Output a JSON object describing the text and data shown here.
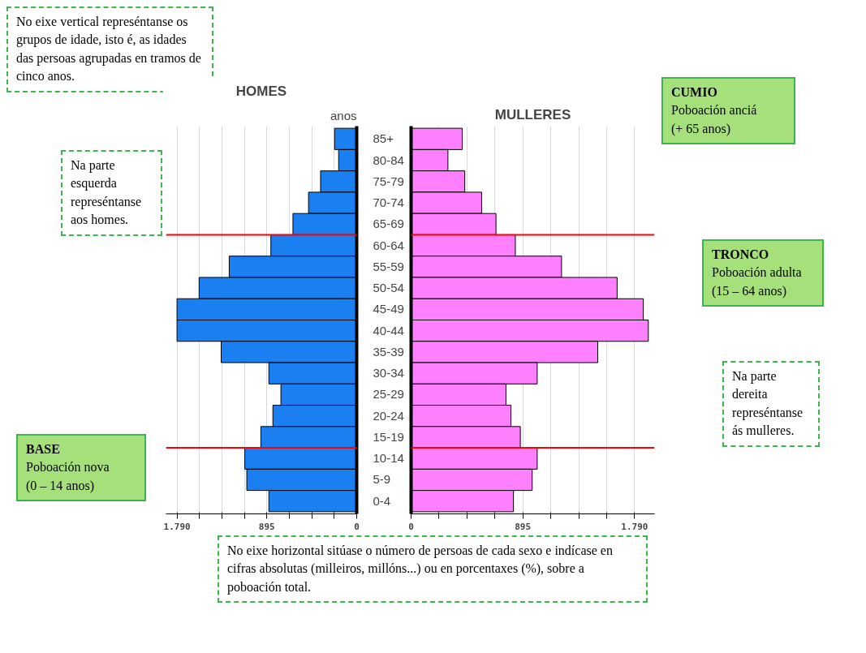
{
  "chart_data": [
    {
      "type": "bar",
      "orientation": "horizontal",
      "title": "HOMES",
      "ylabel": "anos",
      "categories": [
        "85+",
        "80-84",
        "75-79",
        "70-74",
        "65-69",
        "60-64",
        "55-59",
        "50-54",
        "45-49",
        "40-44",
        "35-39",
        "30-34",
        "25-29",
        "20-24",
        "15-19",
        "10-14",
        "5-9",
        "0-4"
      ],
      "series": [
        {
          "color": "#1a7ff0",
          "values": [
            220,
            180,
            360,
            480,
            635,
            855,
            1270,
            1570,
            1790,
            1790,
            1350,
            875,
            755,
            835,
            955,
            1115,
            1095,
            875
          ]
        }
      ],
      "xlim": [
        1900,
        0
      ],
      "xticks": [
        {
          "value": 1790,
          "label": "1.790"
        },
        {
          "value": 1566.25,
          "label": null
        },
        {
          "value": 1342.5,
          "label": null
        },
        {
          "value": 1118.75,
          "label": null
        },
        895,
        {
          "value": 671.25,
          "label": null
        },
        {
          "value": 447.5,
          "label": null
        },
        {
          "value": 223.75,
          "label": null
        },
        0
      ],
      "grid": "x",
      "ref_lines": [
        {
          "axis": "y",
          "value": "65-69",
          "color": "#ff0000"
        },
        {
          "axis": "y",
          "value": "15-19",
          "color": "#ff0000"
        }
      ],
      "annotations": [
        "No eixe vertical represéntanse os grupos de idade, isto é, as idades das persoas agrupadas en tramos de cinco anos.",
        "Na parte\nesquerda\nrepreséntanse\naos homes.",
        "BASE\nPoboación nova\n(0 – 14 anos)"
      ]
    },
    {
      "type": "bar",
      "orientation": "horizontal",
      "title": "MULLERES",
      "tick_labels": "x",
      "categories": [
        "85+",
        "80-84",
        "75-79",
        "70-74",
        "65-69",
        "60-64",
        "55-59",
        "50-54",
        "45-49",
        "40-44",
        "35-39",
        "30-34",
        "25-29",
        "20-24",
        "15-19",
        "10-14",
        "5-9",
        "0-4"
      ],
      "series": [
        {
          "color": "#ff80ff",
          "values": [
            410,
            295,
            430,
            565,
            680,
            835,
            1205,
            1650,
            1860,
            1900,
            1495,
            1010,
            760,
            800,
            875,
            1010,
            970,
            820
          ]
        }
      ],
      "xlim": [
        0,
        1950
      ],
      "xticks": [
        0,
        {
          "value": 223.75,
          "label": null
        },
        {
          "value": 447.5,
          "label": null
        },
        {
          "value": 671.25,
          "label": null
        },
        895,
        {
          "value": 1118.75,
          "label": null
        },
        {
          "value": 1342.5,
          "label": null
        },
        {
          "value": 1566.25,
          "label": null
        },
        {
          "value": 1790,
          "label": "1.790"
        }
      ],
      "grid": "x",
      "annotations": [
        "CUMIO\nPoboación anciá\n(+ 65 anos)",
        "TRONCO\nPoboación adulta\n(15 – 64 anos)",
        "Na parte\ndereita\nrepreséntanse\nás mulleres.",
        "No eixe horizontal sitúase o número de persoas de cada sexo e indícase en cifras absolutas (milleiros, millóns...) ou en porcentaxes (%), sobre a poboación total."
      ]
    }
  ]
}
